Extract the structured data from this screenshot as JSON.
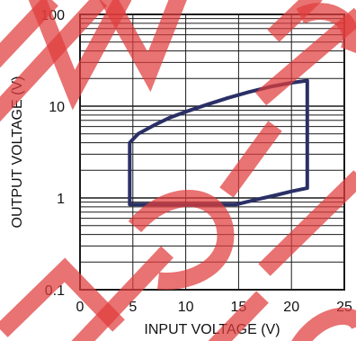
{
  "chart_data": {
    "type": "area",
    "title": "",
    "xlabel": "INPUT VOLTAGE (V)",
    "ylabel": "OUTPUT VOLTAGE (V)",
    "xlim": [
      0,
      25
    ],
    "ylim": [
      0.1,
      100
    ],
    "yscale": "log",
    "grid": true,
    "x_ticks": [
      "0",
      "5",
      "10",
      "15",
      "20",
      "25"
    ],
    "y_ticks": [
      "0.1",
      "1",
      "10",
      "100"
    ],
    "region": {
      "name": "",
      "color": "#2a2f66",
      "upper_boundary": [
        {
          "x": 4.7,
          "y": 4.0
        },
        {
          "x": 5.5,
          "y": 5.0
        },
        {
          "x": 7.0,
          "y": 6.2
        },
        {
          "x": 8.5,
          "y": 7.5
        },
        {
          "x": 10.0,
          "y": 8.7
        },
        {
          "x": 12.0,
          "y": 10.4
        },
        {
          "x": 14.0,
          "y": 12.3
        },
        {
          "x": 16.0,
          "y": 14.3
        },
        {
          "x": 18.0,
          "y": 16.3
        },
        {
          "x": 20.0,
          "y": 18.0
        },
        {
          "x": 21.5,
          "y": 19.0
        }
      ],
      "lower_boundary": [
        {
          "x": 4.7,
          "y": 0.85
        },
        {
          "x": 14.8,
          "y": 0.85
        },
        {
          "x": 16.5,
          "y": 0.95
        },
        {
          "x": 18.5,
          "y": 1.07
        },
        {
          "x": 20.0,
          "y": 1.18
        },
        {
          "x": 21.5,
          "y": 1.28
        }
      ],
      "x_max": 21.5
    }
  }
}
